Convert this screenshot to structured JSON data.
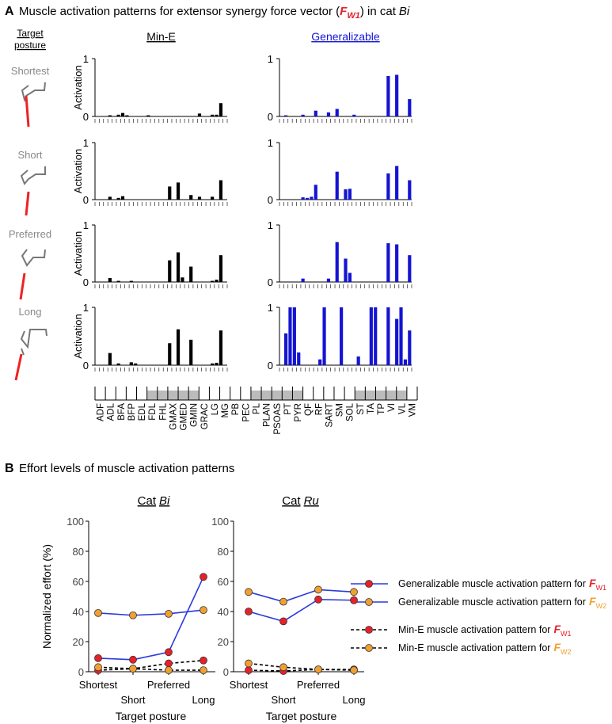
{
  "chart_data": [
    {
      "type": "bar",
      "panel": "A",
      "title": "Muscle activation patterns for extensor synergy force vector (",
      "vector": "F",
      "vector_sub": "W1",
      "title_mid": ") in cat",
      "cat": "Bi",
      "row_header": [
        "Target",
        "posture"
      ],
      "postures": [
        "Shortest",
        "Short",
        "Preferred",
        "Long"
      ],
      "categories": [
        "ADF",
        "ADL",
        "BFA",
        "BFP",
        "EDL",
        "FDL",
        "FHL",
        "GMAX",
        "GMED",
        "GMIN",
        "GRAC",
        "LG",
        "MG",
        "PB",
        "PEC",
        "PL",
        "PLAN",
        "PSOAS",
        "PT",
        "PYR",
        "QF",
        "RF",
        "SART",
        "SM",
        "SOL",
        "ST",
        "TA",
        "TP",
        "VI",
        "VL",
        "VM"
      ],
      "ylim": [
        0,
        1
      ],
      "yticks": [
        0,
        1
      ],
      "y_label": "Activation",
      "series": [
        {
          "name": "Min-E",
          "color": "#000000",
          "values": [
            [
              0,
              0,
              0,
              0.02,
              0,
              0.03,
              0.06,
              0.02,
              0,
              0,
              0,
              0,
              0.02,
              0,
              0,
              0,
              0,
              0,
              0,
              0,
              0,
              0,
              0,
              0,
              0.05,
              0,
              0,
              0.03,
              0.03,
              0.23,
              0
            ],
            [
              0,
              0,
              0,
              0.05,
              0,
              0.03,
              0.06,
              0,
              0,
              0,
              0,
              0,
              0,
              0,
              0,
              0,
              0,
              0.23,
              0,
              0.3,
              0,
              0,
              0.08,
              0,
              0.05,
              0,
              0,
              0.05,
              0,
              0.34,
              0
            ],
            [
              0,
              0,
              0,
              0.07,
              0,
              0.02,
              0,
              0,
              0.02,
              0,
              0,
              0,
              0,
              0,
              0,
              0,
              0,
              0.38,
              0,
              0.52,
              0.08,
              0,
              0.27,
              0,
              0,
              0,
              0,
              0.02,
              0.04,
              0.47,
              0
            ],
            [
              0,
              0,
              0,
              0.21,
              0,
              0.03,
              0,
              0,
              0.05,
              0.03,
              0,
              0,
              0,
              0,
              0,
              0,
              0,
              0.38,
              0,
              0.62,
              0,
              0,
              0.44,
              0,
              0,
              0,
              0,
              0.03,
              0.04,
              0.6,
              0
            ]
          ]
        },
        {
          "name": "Generalizable",
          "color": "#1414d2",
          "values": [
            [
              0,
              0.02,
              0,
              0,
              0,
              0.03,
              0,
              0,
              0.1,
              0,
              0,
              0.07,
              0,
              0.13,
              0,
              0,
              0,
              0.03,
              0,
              0,
              0,
              0,
              0,
              0,
              0,
              0.7,
              0,
              0.72,
              0,
              0,
              0.3
            ],
            [
              0,
              0,
              0,
              0,
              0,
              0.04,
              0.03,
              0.05,
              0.26,
              0,
              0,
              0,
              0,
              0.49,
              0,
              0.18,
              0.19,
              0,
              0,
              0,
              0,
              0,
              0,
              0,
              0,
              0.46,
              0,
              0.59,
              0,
              0,
              0.34
            ],
            [
              0,
              0,
              0,
              0,
              0,
              0.06,
              0,
              0,
              0,
              0,
              0,
              0.06,
              0,
              0.7,
              0,
              0.41,
              0.16,
              0,
              0,
              0,
              0,
              0,
              0,
              0,
              0,
              0.68,
              0,
              0.66,
              0,
              0,
              0.47
            ],
            [
              0,
              0.55,
              1,
              1,
              0.22,
              0,
              0,
              0,
              0,
              0.1,
              1,
              0,
              0,
              0,
              1,
              0,
              0,
              0,
              0.15,
              0,
              0,
              1,
              1,
              0,
              0,
              1,
              0,
              0.8,
              1,
              0.1,
              0.6
            ]
          ]
        }
      ]
    },
    {
      "type": "line",
      "panel": "B",
      "panel_title": "Effort levels of muscle activation patterns",
      "title": "Cat",
      "title_italic": "Bi",
      "categories": [
        "Shortest",
        "Short",
        "Preferred",
        "Long"
      ],
      "x_label": "Target posture",
      "y_label": "Normalized effort (%)",
      "ylim": [
        0,
        100
      ],
      "yticks": [
        0,
        20,
        40,
        60,
        80,
        100
      ],
      "series": [
        {
          "name": "Generalizable muscle activation pattern for",
          "vector": "F",
          "vector_sub": "W1",
          "color": "#2a3adb",
          "marker_color": "#e8202a",
          "dashed": false,
          "values": [
            9,
            8,
            13,
            63
          ]
        },
        {
          "name": "Generalizable muscle activation pattern for",
          "vector": "F",
          "vector_sub": "W2",
          "color": "#2a3adb",
          "marker_color": "#f0a030",
          "dashed": false,
          "values": [
            39,
            37.5,
            38.5,
            41
          ]
        },
        {
          "name": "Min-E muscle activation pattern for",
          "vector": "F",
          "vector_sub": "W1",
          "color": "#000000",
          "marker_color": "#e8202a",
          "dashed": true,
          "values": [
            1,
            2,
            5.5,
            7.5
          ]
        },
        {
          "name": "Min-E muscle activation pattern for",
          "vector": "F",
          "vector_sub": "W2",
          "color": "#000000",
          "marker_color": "#f0a030",
          "dashed": true,
          "values": [
            3,
            2,
            1,
            1
          ]
        }
      ]
    },
    {
      "type": "line",
      "title": "Cat",
      "title_italic": "Ru",
      "categories": [
        "Shortest",
        "Short",
        "Preferred",
        "Long"
      ],
      "x_label": "Target posture",
      "ylim": [
        0,
        100
      ],
      "yticks": [
        0,
        20,
        40,
        60,
        80,
        100
      ],
      "series": [
        {
          "color": "#2a3adb",
          "marker_color": "#e8202a",
          "dashed": false,
          "values": [
            40,
            33.5,
            48,
            47.5
          ]
        },
        {
          "color": "#2a3adb",
          "marker_color": "#f0a030",
          "dashed": false,
          "values": [
            53,
            46.5,
            54.5,
            53
          ]
        },
        {
          "color": "#000000",
          "marker_color": "#e8202a",
          "dashed": true,
          "values": [
            1,
            0.5,
            1.5,
            1.5
          ]
        },
        {
          "color": "#000000",
          "marker_color": "#f0a030",
          "dashed": true,
          "values": [
            5.5,
            3,
            1.5,
            1
          ]
        }
      ]
    }
  ]
}
